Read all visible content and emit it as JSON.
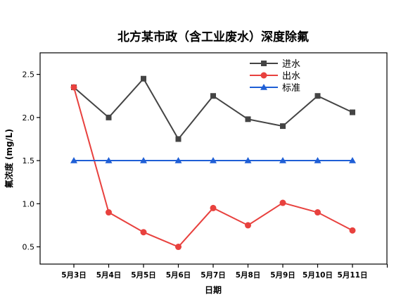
{
  "chart_data": {
    "type": "line",
    "title": "北方某市政（含工业废水）深度除氟",
    "xlabel": "日期",
    "ylabel": "氟浓度 (mg/L)",
    "categories": [
      "5月3日",
      "5月4日",
      "5月5日",
      "5月6日",
      "5月7日",
      "5月8日",
      "5月9日",
      "5月10日",
      "5月11日"
    ],
    "ylim": [
      0.3,
      2.75
    ],
    "yticks": [
      0.5,
      1.0,
      1.5,
      2.0,
      2.5
    ],
    "ytick_labels": [
      "0.5",
      "1.0",
      "1.5",
      "2.0",
      "2.5"
    ],
    "grid": false,
    "legend_position": "top-right",
    "series": [
      {
        "name": "进水",
        "color": "#444444",
        "marker": "square",
        "values": [
          2.35,
          2.0,
          2.45,
          1.75,
          2.25,
          1.98,
          1.9,
          2.25,
          2.06
        ]
      },
      {
        "name": "出水",
        "color": "#e8413e",
        "marker": "circle",
        "values": [
          2.35,
          0.9,
          0.67,
          0.5,
          0.95,
          0.75,
          1.01,
          0.9,
          0.69
        ]
      },
      {
        "name": "标准",
        "color": "#1f5fd6",
        "marker": "triangle",
        "values": [
          1.5,
          1.5,
          1.5,
          1.5,
          1.5,
          1.5,
          1.5,
          1.5,
          1.5
        ]
      }
    ]
  }
}
